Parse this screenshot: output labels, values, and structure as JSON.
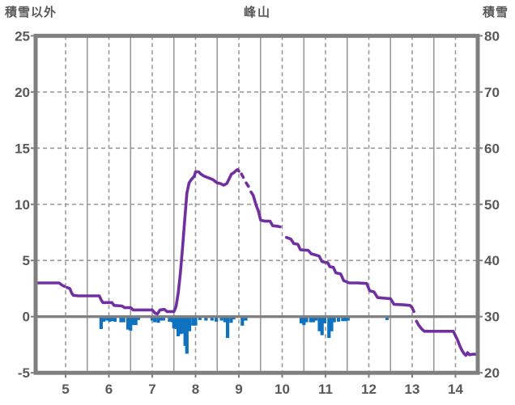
{
  "header": {
    "left_axis_title": "積雪以外",
    "chart_title": "峰山",
    "right_axis_title": "積雪"
  },
  "colors": {
    "line": "#7030a0",
    "bars": "#0e72c0",
    "frame": "#7f7f7f",
    "grid": "#9a9a9a",
    "zero_line": "#808080",
    "text": "#595959",
    "background": "#ffffff"
  },
  "chart_data": {
    "type": "line+bar",
    "title": "峰山",
    "left_axis": {
      "label": "積雪以外",
      "min": -5,
      "max": 25,
      "ticks": [
        25,
        20,
        15,
        10,
        5,
        0,
        -5
      ]
    },
    "right_axis": {
      "label": "積雪",
      "min": 20,
      "max": 80,
      "ticks": [
        80,
        70,
        60,
        50,
        40,
        30,
        20
      ]
    },
    "x_axis": {
      "min": 4.31,
      "max": 14.51,
      "ticks": [
        5,
        6,
        7,
        8,
        9,
        10,
        11,
        12,
        13,
        14
      ],
      "dashed_gridlines_at": [
        5,
        6,
        7,
        8,
        9,
        10,
        11,
        12,
        13,
        14
      ],
      "solid_gridlines_at": [
        5.5,
        6.5,
        7.5,
        8.5,
        9.5,
        10.5,
        11.5,
        12.5,
        13.5
      ],
      "dashed_h_gridlines_left_values": [
        20,
        15,
        10,
        5
      ],
      "zero_line_left_value": 0
    },
    "line_series": {
      "axis": "left",
      "points": [
        [
          4.31,
          3.0
        ],
        [
          4.55,
          3.0
        ],
        [
          4.85,
          3.0
        ],
        [
          4.92,
          2.8
        ],
        [
          4.97,
          2.7
        ],
        null,
        [
          5.03,
          2.6
        ],
        [
          5.1,
          2.5
        ],
        [
          5.14,
          2.1
        ],
        [
          5.18,
          1.9
        ],
        [
          5.3,
          1.85
        ],
        [
          5.5,
          1.85
        ],
        [
          5.78,
          1.85
        ],
        [
          5.82,
          1.5
        ],
        [
          5.86,
          1.25
        ],
        [
          6.0,
          1.25
        ],
        [
          6.07,
          1.25
        ],
        [
          6.12,
          1.0
        ],
        [
          6.3,
          0.95
        ],
        [
          6.36,
          0.8
        ],
        [
          6.5,
          0.8
        ],
        [
          6.56,
          0.6
        ],
        [
          6.8,
          0.6
        ],
        [
          7.0,
          0.6
        ],
        [
          7.07,
          0.3
        ],
        [
          7.12,
          0.25
        ],
        [
          7.18,
          0.6
        ],
        [
          7.28,
          0.65
        ],
        [
          7.34,
          0.45
        ],
        [
          7.5,
          0.45
        ],
        [
          7.55,
          0.9
        ],
        [
          7.6,
          2.1
        ],
        [
          7.65,
          3.9
        ],
        [
          7.7,
          6.2
        ],
        [
          7.75,
          8.6
        ],
        [
          7.8,
          11.0
        ],
        [
          7.85,
          11.9
        ],
        [
          7.9,
          12.2
        ],
        [
          7.97,
          12.5
        ],
        [
          8.0,
          12.9
        ],
        [
          8.07,
          12.9
        ],
        [
          8.12,
          12.7
        ],
        [
          8.2,
          12.5
        ],
        [
          8.3,
          12.35
        ],
        [
          8.4,
          12.2
        ],
        [
          8.5,
          11.9
        ],
        [
          8.57,
          11.85
        ],
        [
          8.65,
          11.7
        ],
        [
          8.72,
          11.85
        ],
        [
          8.78,
          12.3
        ],
        [
          8.83,
          12.7
        ],
        [
          8.88,
          12.8
        ],
        [
          8.93,
          13.0
        ],
        [
          8.97,
          13.1
        ],
        [
          9.0,
          12.95
        ],
        null,
        [
          9.06,
          12.7
        ],
        [
          9.1,
          12.4
        ],
        null,
        [
          9.17,
          11.9
        ],
        [
          9.22,
          11.6
        ],
        null,
        [
          9.28,
          11.1
        ],
        [
          9.33,
          10.8
        ],
        [
          9.4,
          9.9
        ],
        [
          9.45,
          9.4
        ],
        [
          9.5,
          8.6
        ],
        [
          9.6,
          8.5
        ],
        [
          9.72,
          8.5
        ],
        [
          9.78,
          8.1
        ],
        [
          9.88,
          8.05
        ],
        [
          9.95,
          8.0
        ],
        null,
        [
          10.1,
          7.05
        ],
        [
          10.2,
          6.9
        ],
        [
          10.27,
          6.5
        ],
        [
          10.36,
          6.45
        ],
        [
          10.42,
          5.95
        ],
        [
          10.6,
          5.9
        ],
        [
          10.67,
          5.6
        ],
        [
          10.85,
          5.4
        ],
        [
          10.92,
          4.9
        ],
        [
          11.05,
          4.8
        ],
        [
          11.1,
          4.45
        ],
        [
          11.18,
          4.4
        ],
        [
          11.24,
          3.9
        ],
        [
          11.35,
          3.8
        ],
        [
          11.42,
          3.2
        ],
        [
          11.55,
          3.0
        ],
        [
          11.75,
          3.0
        ],
        [
          11.95,
          2.95
        ],
        [
          12.02,
          2.3
        ],
        [
          12.12,
          2.2
        ],
        [
          12.2,
          1.7
        ],
        [
          12.35,
          1.65
        ],
        [
          12.5,
          1.6
        ],
        [
          12.58,
          1.1
        ],
        [
          12.8,
          1.05
        ],
        [
          12.95,
          1.0
        ],
        [
          13.0,
          0.8
        ],
        [
          13.04,
          0.45
        ],
        null,
        [
          13.1,
          -0.4
        ],
        [
          13.15,
          -0.75
        ],
        [
          13.22,
          -1.1
        ],
        [
          13.28,
          -1.3
        ],
        [
          13.6,
          -1.3
        ],
        [
          13.95,
          -1.3
        ],
        [
          14.0,
          -1.7
        ],
        [
          14.05,
          -2.1
        ],
        [
          14.1,
          -2.6
        ],
        [
          14.15,
          -3.0
        ],
        [
          14.2,
          -3.3
        ],
        [
          14.24,
          -3.45
        ],
        [
          14.28,
          -3.2
        ],
        [
          14.32,
          -3.4
        ],
        [
          14.4,
          -3.35
        ],
        [
          14.51,
          -3.35
        ]
      ]
    },
    "bar_series": {
      "axis": "left",
      "points": [
        [
          5.82,
          -1.1
        ],
        [
          5.88,
          -0.45
        ],
        [
          5.96,
          -0.35
        ],
        [
          6.02,
          -0.45
        ],
        [
          6.08,
          -0.4
        ],
        [
          6.14,
          -0.45
        ],
        [
          6.28,
          -0.5
        ],
        [
          6.34,
          -0.5
        ],
        [
          6.44,
          -1.15
        ],
        [
          6.5,
          -1.25
        ],
        [
          6.56,
          -0.75
        ],
        [
          6.62,
          -0.75
        ],
        [
          6.68,
          -0.3
        ],
        [
          7.0,
          -0.35
        ],
        [
          7.06,
          -0.5
        ],
        [
          7.14,
          -0.55
        ],
        [
          7.2,
          -0.35
        ],
        [
          7.26,
          -0.35
        ],
        [
          7.4,
          -0.45
        ],
        [
          7.46,
          -0.5
        ],
        [
          7.5,
          -1.05
        ],
        [
          7.56,
          -1.1
        ],
        [
          7.6,
          -1.75
        ],
        [
          7.66,
          -1.55
        ],
        [
          7.72,
          -1.5
        ],
        [
          7.76,
          -2.6
        ],
        [
          7.8,
          -3.3
        ],
        [
          7.86,
          -1.3
        ],
        [
          7.94,
          -0.8
        ],
        [
          8.0,
          -0.8
        ],
        [
          8.1,
          -0.3
        ],
        [
          8.24,
          -0.35
        ],
        [
          8.38,
          -0.35
        ],
        [
          8.48,
          -0.45
        ],
        [
          8.6,
          -0.35
        ],
        [
          8.68,
          -0.5
        ],
        [
          8.74,
          -1.9
        ],
        [
          8.82,
          -0.55
        ],
        [
          8.88,
          -0.25
        ],
        [
          9.08,
          -0.8
        ],
        [
          9.16,
          -0.35
        ],
        [
          10.44,
          -0.6
        ],
        [
          10.5,
          -0.75
        ],
        [
          10.56,
          -0.5
        ],
        [
          10.66,
          -0.5
        ],
        [
          10.72,
          -0.5
        ],
        [
          10.78,
          -0.35
        ],
        [
          10.86,
          -1.3
        ],
        [
          10.92,
          -1.65
        ],
        [
          10.98,
          -0.6
        ],
        [
          11.08,
          -1.9
        ],
        [
          11.14,
          -1.3
        ],
        [
          11.2,
          -0.5
        ],
        [
          11.3,
          -0.45
        ],
        [
          11.4,
          -0.4
        ],
        [
          11.46,
          -0.4
        ],
        [
          11.52,
          -0.35
        ],
        [
          12.42,
          -0.3
        ]
      ]
    }
  }
}
